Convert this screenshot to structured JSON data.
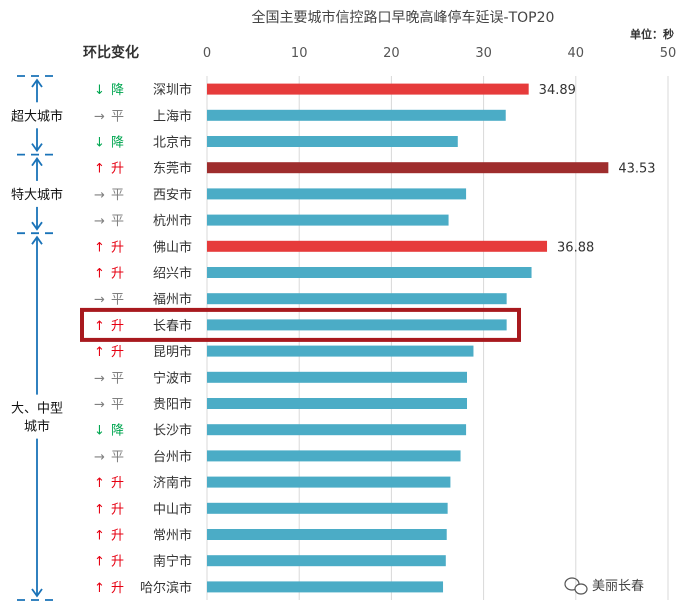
{
  "chart_data": {
    "type": "bar",
    "orientation": "horizontal",
    "title": "全国主要城市信控路口早晚高峰停车延误-TOP20",
    "unit_label": "单位：秒",
    "change_header": "环比变化",
    "xlim": [
      0,
      50
    ],
    "xticks": [
      0,
      10,
      20,
      30,
      40,
      50
    ],
    "grid": true,
    "categories": [
      "深圳市",
      "上海市",
      "北京市",
      "东莞市",
      "西安市",
      "杭州市",
      "佛山市",
      "绍兴市",
      "福州市",
      "长春市",
      "昆明市",
      "宁波市",
      "贵阳市",
      "长沙市",
      "台州市",
      "济南市",
      "中山市",
      "常州市",
      "南宁市",
      "哈尔滨市"
    ],
    "values": [
      34.89,
      32.4,
      27.2,
      43.53,
      28.1,
      26.2,
      36.88,
      35.2,
      32.5,
      32.5,
      28.9,
      28.2,
      28.2,
      28.1,
      27.5,
      26.4,
      26.1,
      26.0,
      25.9,
      25.6
    ],
    "value_labels": [
      "34.89",
      "",
      "",
      "43.53",
      "",
      "",
      "36.88",
      "",
      "",
      "",
      "",
      "",
      "",
      "",
      "",
      "",
      "",
      "",
      "",
      ""
    ],
    "bar_colors": [
      "#e63b3b",
      "#4bacc6",
      "#4bacc6",
      "#9e2d2d",
      "#4bacc6",
      "#4bacc6",
      "#e63b3b",
      "#4bacc6",
      "#4bacc6",
      "#4bacc6",
      "#4bacc6",
      "#4bacc6",
      "#4bacc6",
      "#4bacc6",
      "#4bacc6",
      "#4bacc6",
      "#4bacc6",
      "#4bacc6",
      "#4bacc6",
      "#4bacc6"
    ],
    "changes": [
      {
        "arrow": "↓",
        "text": "降",
        "type": "down"
      },
      {
        "arrow": "→",
        "text": "平",
        "type": "flat"
      },
      {
        "arrow": "↓",
        "text": "降",
        "type": "down"
      },
      {
        "arrow": "↑",
        "text": "升",
        "type": "up"
      },
      {
        "arrow": "→",
        "text": "平",
        "type": "flat"
      },
      {
        "arrow": "→",
        "text": "平",
        "type": "flat"
      },
      {
        "arrow": "↑",
        "text": "升",
        "type": "up"
      },
      {
        "arrow": "↑",
        "text": "升",
        "type": "up"
      },
      {
        "arrow": "→",
        "text": "平",
        "type": "flat"
      },
      {
        "arrow": "↑",
        "text": "升",
        "type": "up"
      },
      {
        "arrow": "↑",
        "text": "升",
        "type": "up"
      },
      {
        "arrow": "→",
        "text": "平",
        "type": "flat"
      },
      {
        "arrow": "→",
        "text": "平",
        "type": "flat"
      },
      {
        "arrow": "↓",
        "text": "降",
        "type": "down"
      },
      {
        "arrow": "→",
        "text": "平",
        "type": "flat"
      },
      {
        "arrow": "↑",
        "text": "升",
        "type": "up"
      },
      {
        "arrow": "↑",
        "text": "升",
        "type": "up"
      },
      {
        "arrow": "↑",
        "text": "升",
        "type": "up"
      },
      {
        "arrow": "↑",
        "text": "升",
        "type": "up"
      },
      {
        "arrow": "↑",
        "text": "升",
        "type": "up"
      }
    ],
    "change_colors": {
      "up": "#e60012",
      "down": "#00a650",
      "flat": "#808080"
    },
    "groups": [
      {
        "label_lines": [
          "超大城市"
        ],
        "first": 0,
        "last": 2
      },
      {
        "label_lines": [
          "特大城市"
        ],
        "first": 3,
        "last": 5
      },
      {
        "label_lines": [
          "大、中型",
          "城市"
        ],
        "first": 6,
        "last": 19
      }
    ],
    "highlighted_category": "长春市",
    "highlight_color": "#a8191e",
    "group_color": "#1a73b8"
  },
  "watermark": {
    "text": "美丽长春",
    "icon": "wechat-icon"
  }
}
